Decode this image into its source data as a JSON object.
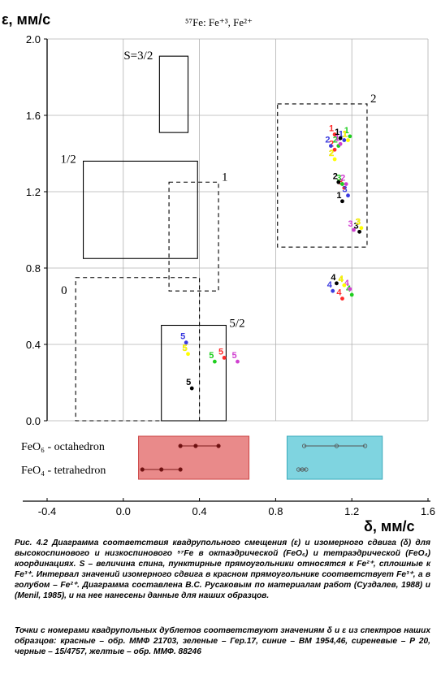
{
  "chart_data": {
    "type": "scatter",
    "title": "⁵⁷Fe: Fe⁺³, Fe²⁺",
    "ylabel": "ε, мм/с",
    "xlabel": "δ, мм/с",
    "xlim": [
      -0.4,
      1.6
    ],
    "ylim": [
      0.0,
      2.0
    ],
    "x_ticks": [
      -0.4,
      0.0,
      0.4,
      0.8,
      1.2,
      1.6
    ],
    "x_tick_labels": [
      "-0.4",
      "0.0",
      "0.4",
      "0.8",
      "1.2",
      "1.6"
    ],
    "y_ticks": [
      0.0,
      0.4,
      0.8,
      1.2,
      1.6,
      2.0
    ],
    "y_tick_labels": [
      "0.0",
      "0.4",
      "0.8",
      "1.2",
      "1.6",
      "2.0"
    ],
    "grid": true,
    "regions": [
      {
        "label": "S=3/2",
        "style": "solid",
        "x": [
          0.19,
          0.34
        ],
        "y": [
          1.51,
          1.91
        ]
      },
      {
        "label": "1/2",
        "style": "solid",
        "x": [
          -0.21,
          0.39
        ],
        "y": [
          0.85,
          1.36
        ]
      },
      {
        "label": "5/2",
        "style": "solid",
        "x": [
          0.2,
          0.54
        ],
        "y": [
          0.0,
          0.5
        ]
      },
      {
        "label": "1",
        "style": "dashed",
        "x": [
          0.24,
          0.5
        ],
        "y": [
          0.68,
          1.25
        ]
      },
      {
        "label": "0",
        "style": "dashed",
        "x": [
          -0.25,
          0.4
        ],
        "y": [
          0.0,
          0.75
        ]
      },
      {
        "label": "2",
        "style": "dashed",
        "x": [
          0.81,
          1.28
        ],
        "y": [
          0.91,
          1.66
        ]
      }
    ],
    "series": [
      {
        "color": "#ff2a2a",
        "points": [
          {
            "x": 1.11,
            "y": 1.5,
            "label": "1"
          },
          {
            "x": 1.11,
            "y": 1.42,
            "label": "2"
          },
          {
            "x": 1.16,
            "y": 1.22,
            "label": "3"
          },
          {
            "x": 1.15,
            "y": 0.64,
            "label": "4"
          },
          {
            "x": 0.53,
            "y": 0.33,
            "label": "5"
          }
        ]
      },
      {
        "color": "#1fcf1f",
        "points": [
          {
            "x": 1.19,
            "y": 1.49,
            "label": "1"
          },
          {
            "x": 1.13,
            "y": 1.44,
            "label": "2"
          },
          {
            "x": 1.15,
            "y": 1.24,
            "label": "3"
          },
          {
            "x": 1.2,
            "y": 0.66,
            "label": "4"
          },
          {
            "x": 0.48,
            "y": 0.31,
            "label": "5"
          }
        ]
      },
      {
        "color": "#3a3adf",
        "points": [
          {
            "x": 1.16,
            "y": 1.47,
            "label": "1"
          },
          {
            "x": 1.09,
            "y": 1.44,
            "label": "2"
          },
          {
            "x": 1.18,
            "y": 1.18,
            "label": "3"
          },
          {
            "x": 1.1,
            "y": 0.68,
            "label": "4"
          },
          {
            "x": 0.33,
            "y": 0.41,
            "label": "5"
          }
        ]
      },
      {
        "color": "#d040d0",
        "points": [
          {
            "x": 1.14,
            "y": 1.45,
            "label": "1"
          },
          {
            "x": 1.17,
            "y": 1.24,
            "label": "2"
          },
          {
            "x": 1.21,
            "y": 1.0,
            "label": "3"
          },
          {
            "x": 1.19,
            "y": 0.69,
            "label": "4"
          },
          {
            "x": 0.6,
            "y": 0.31,
            "label": "5"
          }
        ]
      },
      {
        "color": "#000000",
        "points": [
          {
            "x": 1.14,
            "y": 1.48,
            "label": "1"
          },
          {
            "x": 1.15,
            "y": 1.15,
            "label": "1"
          },
          {
            "x": 1.13,
            "y": 1.25,
            "label": "2"
          },
          {
            "x": 1.24,
            "y": 0.99,
            "label": "3"
          },
          {
            "x": 1.12,
            "y": 0.72,
            "label": "4"
          },
          {
            "x": 0.36,
            "y": 0.17,
            "label": "5"
          }
        ]
      },
      {
        "color": "#ffff00",
        "points": [
          {
            "x": 1.18,
            "y": 1.47,
            "label": "1"
          },
          {
            "x": 1.11,
            "y": 1.37,
            "label": "2"
          },
          {
            "x": 1.25,
            "y": 1.01,
            "label": "3"
          },
          {
            "x": 1.16,
            "y": 0.71,
            "label": "4"
          },
          {
            "x": 0.34,
            "y": 0.35,
            "label": "5"
          }
        ]
      }
    ],
    "legend": {
      "labels": [
        "FeO₆ - octahedron",
        "FeO₄ - tetrahedron"
      ],
      "red_box_color": "#e98a8a",
      "blue_box_color": "#7fd4e0",
      "octa_fe3": [
        0.3,
        0.38,
        0.5
      ],
      "tetra_fe3": [
        0.1,
        0.2,
        0.3
      ],
      "octa_fe2": [
        0.95,
        1.12,
        1.27
      ],
      "tetra_fe2": [
        0.92,
        0.94,
        0.96
      ]
    }
  },
  "caption": {
    "p1": "Рис. 4.2 Диаграмма соответствия квадрупольного смещения (ε) и изомерного сдвига (δ) для высокоспинового и низкоспинового ⁵⁷Fe в октаэдрической (FeO₆) и тетраэдрической (FeO₄) координациях. S – величина спина, пунктирные прямоугольники относятся к Fe²⁺, сплошные к Fe³⁺. Интервал значений изомерного сдвига в красном прямоугольнике соответствует Fe³⁺, а в голубом – Fe²⁺. Диаграмма составлена В.С. Русаковым по материалам работ (Суздалев, 1988) и (Menil, 1985), и на нее нанесены данные для наших образцов.",
    "p2": "Точки с номерами квадрупольных дублетов соответствуют значениям δ и ε из спектров наших образцов: красные – обр. ММФ 21703, зеленые – Гер.17, синие – ВМ 1954,46, сиреневые – Р 20, черные – 15/4757, желтые – обр. ММФ. 88246"
  }
}
